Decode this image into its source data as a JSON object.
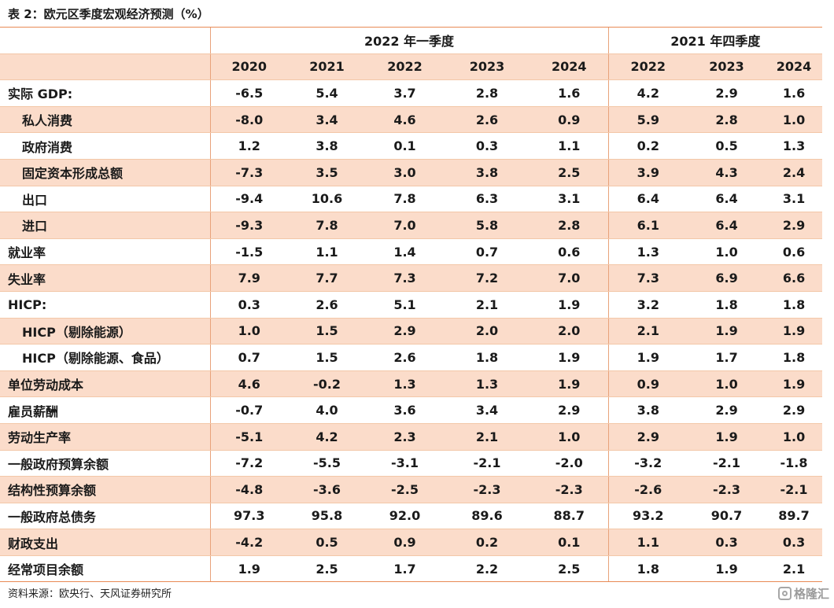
{
  "caption": "表 2：欧元区季度宏观经济预测（%）",
  "groups": {
    "g1": "2022 年一季度",
    "g2": "2021 年四季度"
  },
  "years": [
    "2020",
    "2021",
    "2022",
    "2023",
    "2024",
    "2022",
    "2023",
    "2024"
  ],
  "rows": [
    {
      "label": "实际 GDP:",
      "values": [
        "-6.5",
        "5.4",
        "3.7",
        "2.8",
        "1.6",
        "4.2",
        "2.9",
        "1.6"
      ]
    },
    {
      "label": "私人消费",
      "values": [
        "-8.0",
        "3.4",
        "4.6",
        "2.6",
        "0.9",
        "5.9",
        "2.8",
        "1.0"
      ]
    },
    {
      "label": "政府消费",
      "values": [
        "1.2",
        "3.8",
        "0.1",
        "0.3",
        "1.1",
        "0.2",
        "0.5",
        "1.3"
      ]
    },
    {
      "label": "固定资本形成总额",
      "values": [
        "-7.3",
        "3.5",
        "3.0",
        "3.8",
        "2.5",
        "3.9",
        "4.3",
        "2.4"
      ]
    },
    {
      "label": "出口",
      "values": [
        "-9.4",
        "10.6",
        "7.8",
        "6.3",
        "3.1",
        "6.4",
        "6.4",
        "3.1"
      ]
    },
    {
      "label": "进口",
      "values": [
        "-9.3",
        "7.8",
        "7.0",
        "5.8",
        "2.8",
        "6.1",
        "6.4",
        "2.9"
      ]
    },
    {
      "label": "就业率",
      "values": [
        "-1.5",
        "1.1",
        "1.4",
        "0.7",
        "0.6",
        "1.3",
        "1.0",
        "0.6"
      ]
    },
    {
      "label": "失业率",
      "values": [
        "7.9",
        "7.7",
        "7.3",
        "7.2",
        "7.0",
        "7.3",
        "6.9",
        "6.6"
      ]
    },
    {
      "label": "HICP:",
      "values": [
        "0.3",
        "2.6",
        "5.1",
        "2.1",
        "1.9",
        "3.2",
        "1.8",
        "1.8"
      ]
    },
    {
      "label": "HICP（剔除能源）",
      "values": [
        "1.0",
        "1.5",
        "2.9",
        "2.0",
        "2.0",
        "2.1",
        "1.9",
        "1.9"
      ]
    },
    {
      "label": "HICP（剔除能源、食品）",
      "values": [
        "0.7",
        "1.5",
        "2.6",
        "1.8",
        "1.9",
        "1.9",
        "1.7",
        "1.8"
      ]
    },
    {
      "label": "单位劳动成本",
      "values": [
        "4.6",
        "-0.2",
        "1.3",
        "1.3",
        "1.9",
        "0.9",
        "1.0",
        "1.9"
      ]
    },
    {
      "label": "雇员薪酬",
      "values": [
        "-0.7",
        "4.0",
        "3.6",
        "3.4",
        "2.9",
        "3.8",
        "2.9",
        "2.9"
      ]
    },
    {
      "label": "劳动生产率",
      "values": [
        "-5.1",
        "4.2",
        "2.3",
        "2.1",
        "1.0",
        "2.9",
        "1.9",
        "1.0"
      ]
    },
    {
      "label": "一般政府预算余额",
      "values": [
        "-7.2",
        "-5.5",
        "-3.1",
        "-2.1",
        "-2.0",
        "-3.2",
        "-2.1",
        "-1.8"
      ]
    },
    {
      "label": "结构性预算余额",
      "values": [
        "-4.8",
        "-3.6",
        "-2.5",
        "-2.3",
        "-2.3",
        "-2.6",
        "-2.3",
        "-2.1"
      ]
    },
    {
      "label": "一般政府总债务",
      "values": [
        "97.3",
        "95.8",
        "92.0",
        "89.6",
        "88.7",
        "93.2",
        "90.7",
        "89.7"
      ]
    },
    {
      "label": "财政支出",
      "values": [
        "-4.2",
        "0.5",
        "0.9",
        "0.2",
        "0.1",
        "1.1",
        "0.3",
        "0.3"
      ]
    },
    {
      "label": "经常项目余额",
      "values": [
        "1.9",
        "2.5",
        "1.7",
        "2.2",
        "2.5",
        "1.8",
        "1.9",
        "2.1"
      ]
    }
  ],
  "source": "资料来源：欧央行、天风证券研究所",
  "watermark": "格隆汇",
  "watermark_icon": "gelonghui-logo-icon"
}
